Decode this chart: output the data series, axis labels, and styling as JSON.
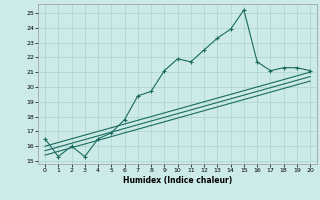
{
  "title": "",
  "xlabel": "Humidex (Indice chaleur)",
  "background_color": "#cceae7",
  "grid_color": "#aad4d0",
  "line_color": "#1a6b5e",
  "xlim": [
    -0.5,
    20.5
  ],
  "ylim": [
    14.8,
    25.6
  ],
  "yticks": [
    15,
    16,
    17,
    18,
    19,
    20,
    21,
    22,
    23,
    24,
    25
  ],
  "xticks": [
    0,
    1,
    2,
    3,
    4,
    5,
    6,
    7,
    8,
    9,
    10,
    11,
    12,
    13,
    14,
    15,
    16,
    17,
    18,
    19,
    20
  ],
  "series1": {
    "x": [
      0,
      1,
      2,
      3,
      4,
      5,
      6,
      7,
      8,
      9,
      10,
      11,
      12,
      13,
      14,
      15,
      16,
      17,
      18,
      19,
      20
    ],
    "y": [
      16.5,
      15.3,
      16.0,
      15.3,
      16.5,
      16.9,
      17.8,
      19.4,
      19.7,
      21.1,
      21.9,
      21.7,
      22.5,
      23.3,
      23.9,
      25.2,
      21.7,
      21.1,
      21.3,
      21.3,
      21.1
    ]
  },
  "series2": {
    "x": [
      0,
      20
    ],
    "y": [
      16.0,
      21.0
    ]
  },
  "series3": {
    "x": [
      0,
      20
    ],
    "y": [
      15.7,
      20.7
    ]
  },
  "series4": {
    "x": [
      0,
      20
    ],
    "y": [
      15.4,
      20.4
    ]
  },
  "tick_labelsize": 4.5,
  "xlabel_fontsize": 5.5,
  "linewidth": 0.8,
  "marker_size": 2.5,
  "marker_ew": 0.8
}
